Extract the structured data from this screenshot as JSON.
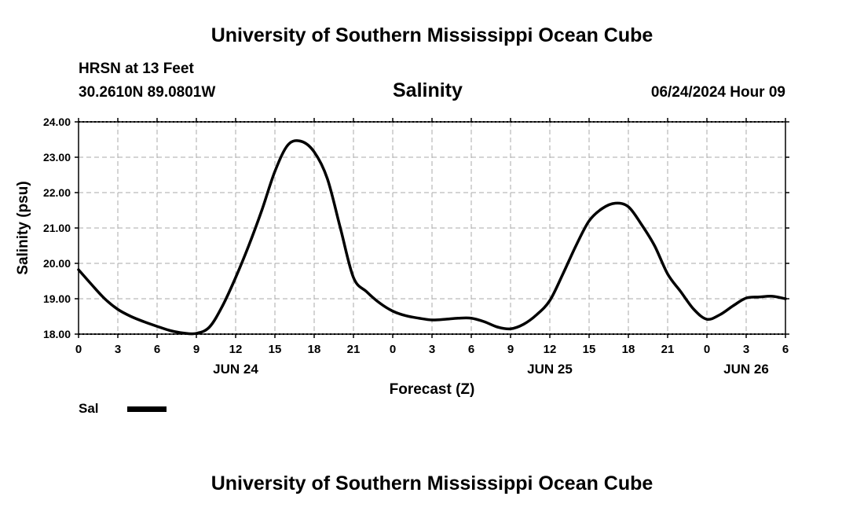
{
  "header": {
    "title_top": "University of Southern Mississippi Ocean Cube",
    "title_bottom": "University of Southern Mississippi Ocean Cube",
    "station": "HRSN at 13 Feet",
    "coords": "30.2610N  89.0801W",
    "datetime": "06/24/2024 Hour 09"
  },
  "legend": {
    "label": "Sal",
    "color": "#000000"
  },
  "chart_data": {
    "type": "line",
    "title": "Salinity",
    "xlabel": "Forecast (Z)",
    "ylabel": "Salinity (psu)",
    "ylim": [
      18.0,
      24.0
    ],
    "xlim": [
      0,
      54
    ],
    "grid": true,
    "x_ticks": [
      {
        "x": 0,
        "label": "0"
      },
      {
        "x": 3,
        "label": "3"
      },
      {
        "x": 6,
        "label": "6"
      },
      {
        "x": 9,
        "label": "9"
      },
      {
        "x": 12,
        "label": "12"
      },
      {
        "x": 15,
        "label": "15"
      },
      {
        "x": 18,
        "label": "18"
      },
      {
        "x": 21,
        "label": "21"
      },
      {
        "x": 24,
        "label": "0"
      },
      {
        "x": 27,
        "label": "3"
      },
      {
        "x": 30,
        "label": "6"
      },
      {
        "x": 33,
        "label": "9"
      },
      {
        "x": 36,
        "label": "12"
      },
      {
        "x": 39,
        "label": "15"
      },
      {
        "x": 42,
        "label": "18"
      },
      {
        "x": 45,
        "label": "21"
      },
      {
        "x": 48,
        "label": "0"
      },
      {
        "x": 51,
        "label": "3"
      },
      {
        "x": 54,
        "label": "6"
      }
    ],
    "y_ticks": [
      {
        "y": 18.0,
        "label": "18.00"
      },
      {
        "y": 19.0,
        "label": "19.00"
      },
      {
        "y": 20.0,
        "label": "20.00"
      },
      {
        "y": 21.0,
        "label": "21.00"
      },
      {
        "y": 22.0,
        "label": "22.00"
      },
      {
        "y": 23.0,
        "label": "23.00"
      },
      {
        "y": 24.0,
        "label": "24.00"
      }
    ],
    "date_labels": [
      {
        "x": 12,
        "label": "JUN 24"
      },
      {
        "x": 36,
        "label": "JUN 25"
      },
      {
        "x": 51,
        "label": "JUN 26"
      }
    ],
    "series": [
      {
        "name": "Sal",
        "x": [
          0,
          1,
          2,
          3,
          4,
          5,
          6,
          7,
          8,
          9,
          10,
          11,
          12,
          13,
          14,
          15,
          16,
          17,
          18,
          19,
          20,
          21,
          22,
          23,
          24,
          25,
          26,
          27,
          28,
          29,
          30,
          31,
          32,
          33,
          34,
          35,
          36,
          37,
          38,
          39,
          40,
          41,
          42,
          43,
          44,
          45,
          46,
          47,
          48,
          49,
          50,
          51,
          52,
          53,
          54
        ],
        "values": [
          19.82,
          19.4,
          19.0,
          18.7,
          18.5,
          18.35,
          18.22,
          18.1,
          18.03,
          18.02,
          18.2,
          18.8,
          19.6,
          20.5,
          21.5,
          22.6,
          23.35,
          23.45,
          23.15,
          22.4,
          21.0,
          19.6,
          19.2,
          18.88,
          18.65,
          18.52,
          18.45,
          18.4,
          18.42,
          18.45,
          18.45,
          18.35,
          18.2,
          18.15,
          18.28,
          18.55,
          18.95,
          19.7,
          20.5,
          21.2,
          21.55,
          21.7,
          21.6,
          21.1,
          20.5,
          19.7,
          19.2,
          18.7,
          18.42,
          18.55,
          18.8,
          19.02,
          19.05,
          19.07,
          19.0
        ]
      }
    ]
  }
}
